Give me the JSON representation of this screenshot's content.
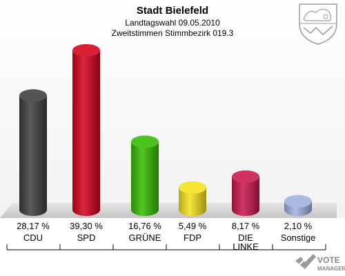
{
  "chart_data": {
    "type": "bar",
    "title": "Stadt Bielefeld",
    "subtitle_1": "Landtagswahl 09.05.2010",
    "subtitle_2": "Zweitstimmen Stimmbezirk 019.3",
    "categories": [
      "CDU",
      "SPD",
      "GRÜNE",
      "FDP",
      "DIE LINKE",
      "Sonstige"
    ],
    "values": [
      28.17,
      39.3,
      16.76,
      5.49,
      8.17,
      2.1
    ],
    "value_labels": [
      "28,17 %",
      "39,30 %",
      "16,76 %",
      "5,49 %",
      "8,17 %",
      "2,10 %"
    ],
    "colors": [
      "#3d3d3d",
      "#d3001b",
      "#33bb00",
      "#f4e11a",
      "#c8164a",
      "#a0b0e0"
    ],
    "ylim": [
      0,
      40
    ],
    "xlabel": "",
    "ylabel": ""
  },
  "watermark": {
    "line1": "VOTE",
    "line2": "MANAGER"
  },
  "coat_of_arms": "north-rhine-westphalia-coat-of-arms"
}
